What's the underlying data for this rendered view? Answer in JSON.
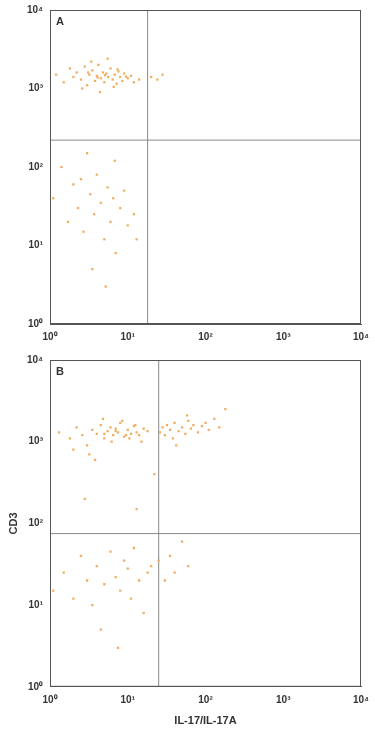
{
  "chart_data": [
    {
      "type": "scatter",
      "title": "A",
      "color": "#f0ae5e",
      "marker": "square",
      "log": true,
      "grid": false,
      "xlim": [
        1,
        10000
      ],
      "ylim": [
        1,
        10000
      ],
      "xticks": [
        {
          "value": 1,
          "label": "10⁰"
        },
        {
          "value": 10,
          "label": "10¹"
        },
        {
          "value": 100,
          "label": "10²"
        },
        {
          "value": 1000,
          "label": "10³"
        },
        {
          "value": 10000,
          "label": "10⁴"
        }
      ],
      "yticks": [
        {
          "value": 1,
          "label": "10⁰"
        },
        {
          "value": 10,
          "label": "10¹"
        },
        {
          "value": 100,
          "label": "10²"
        },
        {
          "value": 1000,
          "label": "10³"
        },
        {
          "value": 10000,
          "label": "10⁴"
        }
      ],
      "gate_x": 18,
      "gate_y": 220,
      "x": [
        1.2,
        1.5,
        1.8,
        2,
        2.2,
        2.5,
        2.8,
        3,
        3.2,
        3.5,
        3.8,
        4,
        4.2,
        4.5,
        4.8,
        5,
        5.3,
        5.6,
        6,
        6.4,
        6.8,
        7.2,
        7.6,
        8,
        8.5,
        9,
        10,
        11,
        12,
        14,
        2.6,
        3.4,
        4.4,
        5.5,
        6.6,
        7.4,
        4.1,
        5.1,
        3.1,
        9.5,
        20,
        24,
        28,
        1.1,
        1.4,
        1.7,
        2,
        2.3,
        2.7,
        3,
        3.3,
        3.7,
        4,
        4.5,
        5,
        5.5,
        6,
        6.5,
        7,
        8,
        9,
        10,
        12,
        3.5,
        5.2,
        6.8,
        2.5,
        13
      ],
      "values": [
        1500,
        1200,
        1800,
        1400,
        1600,
        1300,
        1900,
        1100,
        1500,
        1700,
        1250,
        1450,
        2000,
        1350,
        1600,
        1200,
        1550,
        1400,
        1800,
        1300,
        1500,
        1150,
        1650,
        1400,
        1250,
        1550,
        1350,
        1450,
        1200,
        1300,
        1000,
        2200,
        900,
        2400,
        1050,
        1750,
        1380,
        1480,
        1600,
        1420,
        1400,
        1300,
        1500,
        40,
        100,
        20,
        60,
        30,
        15,
        150,
        45,
        25,
        80,
        35,
        12,
        55,
        20,
        40,
        8,
        30,
        50,
        18,
        25,
        5,
        3,
        120,
        70,
        12
      ]
    },
    {
      "type": "scatter",
      "title": "B",
      "color": "#f0ae5e",
      "marker": "square",
      "log": true,
      "grid": false,
      "x_label": "IL-17/IL-17A",
      "y_label": "CD3",
      "xlim": [
        1,
        10000
      ],
      "ylim": [
        1,
        10000
      ],
      "xticks": [
        {
          "value": 1,
          "label": "10⁰"
        },
        {
          "value": 10,
          "label": "10¹"
        },
        {
          "value": 100,
          "label": "10²"
        },
        {
          "value": 1000,
          "label": "10³"
        },
        {
          "value": 10000,
          "label": "10⁴"
        }
      ],
      "yticks": [
        {
          "value": 1,
          "label": "10⁰"
        },
        {
          "value": 10,
          "label": "10¹"
        },
        {
          "value": 100,
          "label": "10²"
        },
        {
          "value": 1000,
          "label": "10³"
        },
        {
          "value": 10000,
          "label": "10⁴"
        }
      ],
      "gate_x": 25,
      "gate_y": 75,
      "x": [
        1.3,
        1.8,
        2.2,
        2.6,
        3,
        3.5,
        4,
        4.5,
        5,
        5.5,
        6,
        6.5,
        7,
        7.5,
        8,
        9,
        10,
        11,
        12,
        13,
        14,
        16,
        18,
        2,
        3.2,
        4.8,
        6.2,
        8.5,
        10.5,
        12.5,
        5,
        7,
        9.5,
        3.8,
        15,
        26,
        28,
        30,
        32,
        35,
        38,
        40,
        45,
        50,
        55,
        60,
        65,
        70,
        80,
        90,
        100,
        110,
        130,
        150,
        180,
        42,
        58,
        1.1,
        1.5,
        2,
        2.5,
        3,
        3.5,
        4,
        5,
        6,
        7,
        8,
        9,
        10,
        11,
        12,
        14,
        16,
        18,
        20,
        25,
        30,
        35,
        40,
        50,
        60,
        4.5,
        7.5,
        2.8,
        13,
        22
      ],
      "values": [
        1300,
        1100,
        1500,
        1200,
        900,
        1400,
        1250,
        1600,
        1100,
        1350,
        1500,
        1200,
        1450,
        1300,
        1700,
        1150,
        1400,
        1250,
        1550,
        1300,
        1200,
        1450,
        1350,
        800,
        700,
        1900,
        1000,
        1800,
        1100,
        1600,
        1250,
        1350,
        1200,
        600,
        1000,
        1300,
        1500,
        1200,
        1600,
        1400,
        1100,
        1700,
        1350,
        1500,
        1250,
        1800,
        1450,
        1600,
        1300,
        1550,
        1700,
        1400,
        1900,
        1500,
        2500,
        900,
        2100,
        15,
        25,
        12,
        40,
        20,
        10,
        30,
        18,
        45,
        22,
        15,
        35,
        28,
        12,
        50,
        20,
        8,
        25,
        30,
        35,
        20,
        40,
        25,
        60,
        30,
        5,
        3,
        200,
        150,
        400
      ]
    }
  ]
}
